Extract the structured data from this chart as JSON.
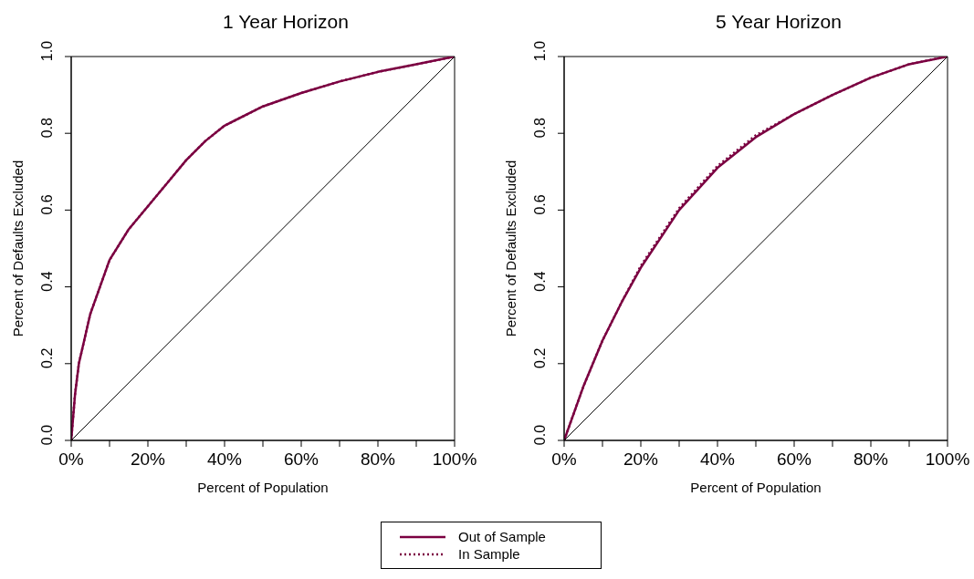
{
  "chart_data": [
    {
      "type": "line",
      "title": "1 Year Horizon",
      "xlabel": "Percent of Population",
      "ylabel": "Percent of Defaults Excluded",
      "xlim": [
        0,
        1
      ],
      "ylim": [
        0,
        1
      ],
      "xticks": [
        {
          "value": 0,
          "label": "0%"
        },
        {
          "value": 0.1,
          "label": null
        },
        {
          "value": 0.2,
          "label": "20%"
        },
        {
          "value": 0.3,
          "label": null
        },
        {
          "value": 0.4,
          "label": "40%"
        },
        {
          "value": 0.5,
          "label": null
        },
        {
          "value": 0.6,
          "label": "60%"
        },
        {
          "value": 0.7,
          "label": null
        },
        {
          "value": 0.8,
          "label": "80%"
        },
        {
          "value": 0.9,
          "label": null
        },
        {
          "value": 1,
          "label": "100%"
        }
      ],
      "yticks": [
        {
          "value": 0,
          "label": "0.0"
        },
        {
          "value": 0.2,
          "label": "0.2"
        },
        {
          "value": 0.4,
          "label": "0.4"
        },
        {
          "value": 0.6,
          "label": "0.6"
        },
        {
          "value": 0.8,
          "label": "0.8"
        },
        {
          "value": 1,
          "label": "1.0"
        }
      ],
      "grid": false,
      "legend": "bottom",
      "marker": "none",
      "series": [
        {
          "name": "Out of Sample",
          "color": "#7b0041",
          "line_style": "solid",
          "x": [
            0,
            0.01,
            0.02,
            0.05,
            0.1,
            0.15,
            0.2,
            0.25,
            0.3,
            0.35,
            0.4,
            0.5,
            0.6,
            0.7,
            0.8,
            0.9,
            1
          ],
          "values": [
            0,
            0.12,
            0.2,
            0.33,
            0.47,
            0.55,
            0.61,
            0.67,
            0.73,
            0.78,
            0.82,
            0.87,
            0.905,
            0.935,
            0.96,
            0.98,
            1
          ]
        },
        {
          "name": "In Sample",
          "color": "#7b0041",
          "line_style": "dotted",
          "x": [
            0,
            0.01,
            0.02,
            0.05,
            0.1,
            0.15,
            0.2,
            0.25,
            0.3,
            0.35,
            0.4,
            0.5,
            0.6,
            0.7,
            0.8,
            0.9,
            1
          ],
          "values": [
            0,
            0.12,
            0.2,
            0.33,
            0.47,
            0.55,
            0.61,
            0.67,
            0.73,
            0.78,
            0.82,
            0.87,
            0.905,
            0.935,
            0.96,
            0.98,
            1
          ]
        },
        {
          "color": "#000000",
          "line_style": "solid",
          "x": [
            0,
            1
          ],
          "values": [
            0,
            1
          ]
        }
      ]
    },
    {
      "type": "line",
      "title": "5 Year Horizon",
      "xlabel": "Percent of Population",
      "ylabel": "Percent of Defaults Excluded",
      "xlim": [
        0,
        1
      ],
      "ylim": [
        0,
        1
      ],
      "xticks": [
        {
          "value": 0,
          "label": "0%"
        },
        {
          "value": 0.1,
          "label": null
        },
        {
          "value": 0.2,
          "label": "20%"
        },
        {
          "value": 0.3,
          "label": null
        },
        {
          "value": 0.4,
          "label": "40%"
        },
        {
          "value": 0.5,
          "label": null
        },
        {
          "value": 0.6,
          "label": "60%"
        },
        {
          "value": 0.7,
          "label": null
        },
        {
          "value": 0.8,
          "label": "80%"
        },
        {
          "value": 0.9,
          "label": null
        },
        {
          "value": 1,
          "label": "100%"
        }
      ],
      "yticks": [
        {
          "value": 0,
          "label": "0.0"
        },
        {
          "value": 0.2,
          "label": "0.2"
        },
        {
          "value": 0.4,
          "label": "0.4"
        },
        {
          "value": 0.6,
          "label": "0.6"
        },
        {
          "value": 0.8,
          "label": "0.8"
        },
        {
          "value": 1,
          "label": "1.0"
        }
      ],
      "grid": false,
      "marker": "none",
      "series": [
        {
          "color": "#7b0041",
          "line_style": "solid",
          "x": [
            0,
            0.05,
            0.1,
            0.15,
            0.2,
            0.3,
            0.4,
            0.5,
            0.6,
            0.7,
            0.8,
            0.9,
            1
          ],
          "values": [
            0,
            0.14,
            0.26,
            0.36,
            0.45,
            0.6,
            0.71,
            0.79,
            0.85,
            0.9,
            0.945,
            0.98,
            1
          ]
        },
        {
          "color": "#7b0041",
          "line_style": "dotted",
          "x": [
            0,
            0.05,
            0.1,
            0.15,
            0.2,
            0.3,
            0.4,
            0.5,
            0.6,
            0.7,
            0.8,
            0.9,
            1
          ],
          "values": [
            0,
            0.14,
            0.26,
            0.36,
            0.455,
            0.605,
            0.715,
            0.795,
            0.85,
            0.9,
            0.945,
            0.98,
            1
          ]
        },
        {
          "color": "#000000",
          "line_style": "solid",
          "x": [
            0,
            1
          ],
          "values": [
            0,
            1
          ]
        }
      ]
    }
  ]
}
